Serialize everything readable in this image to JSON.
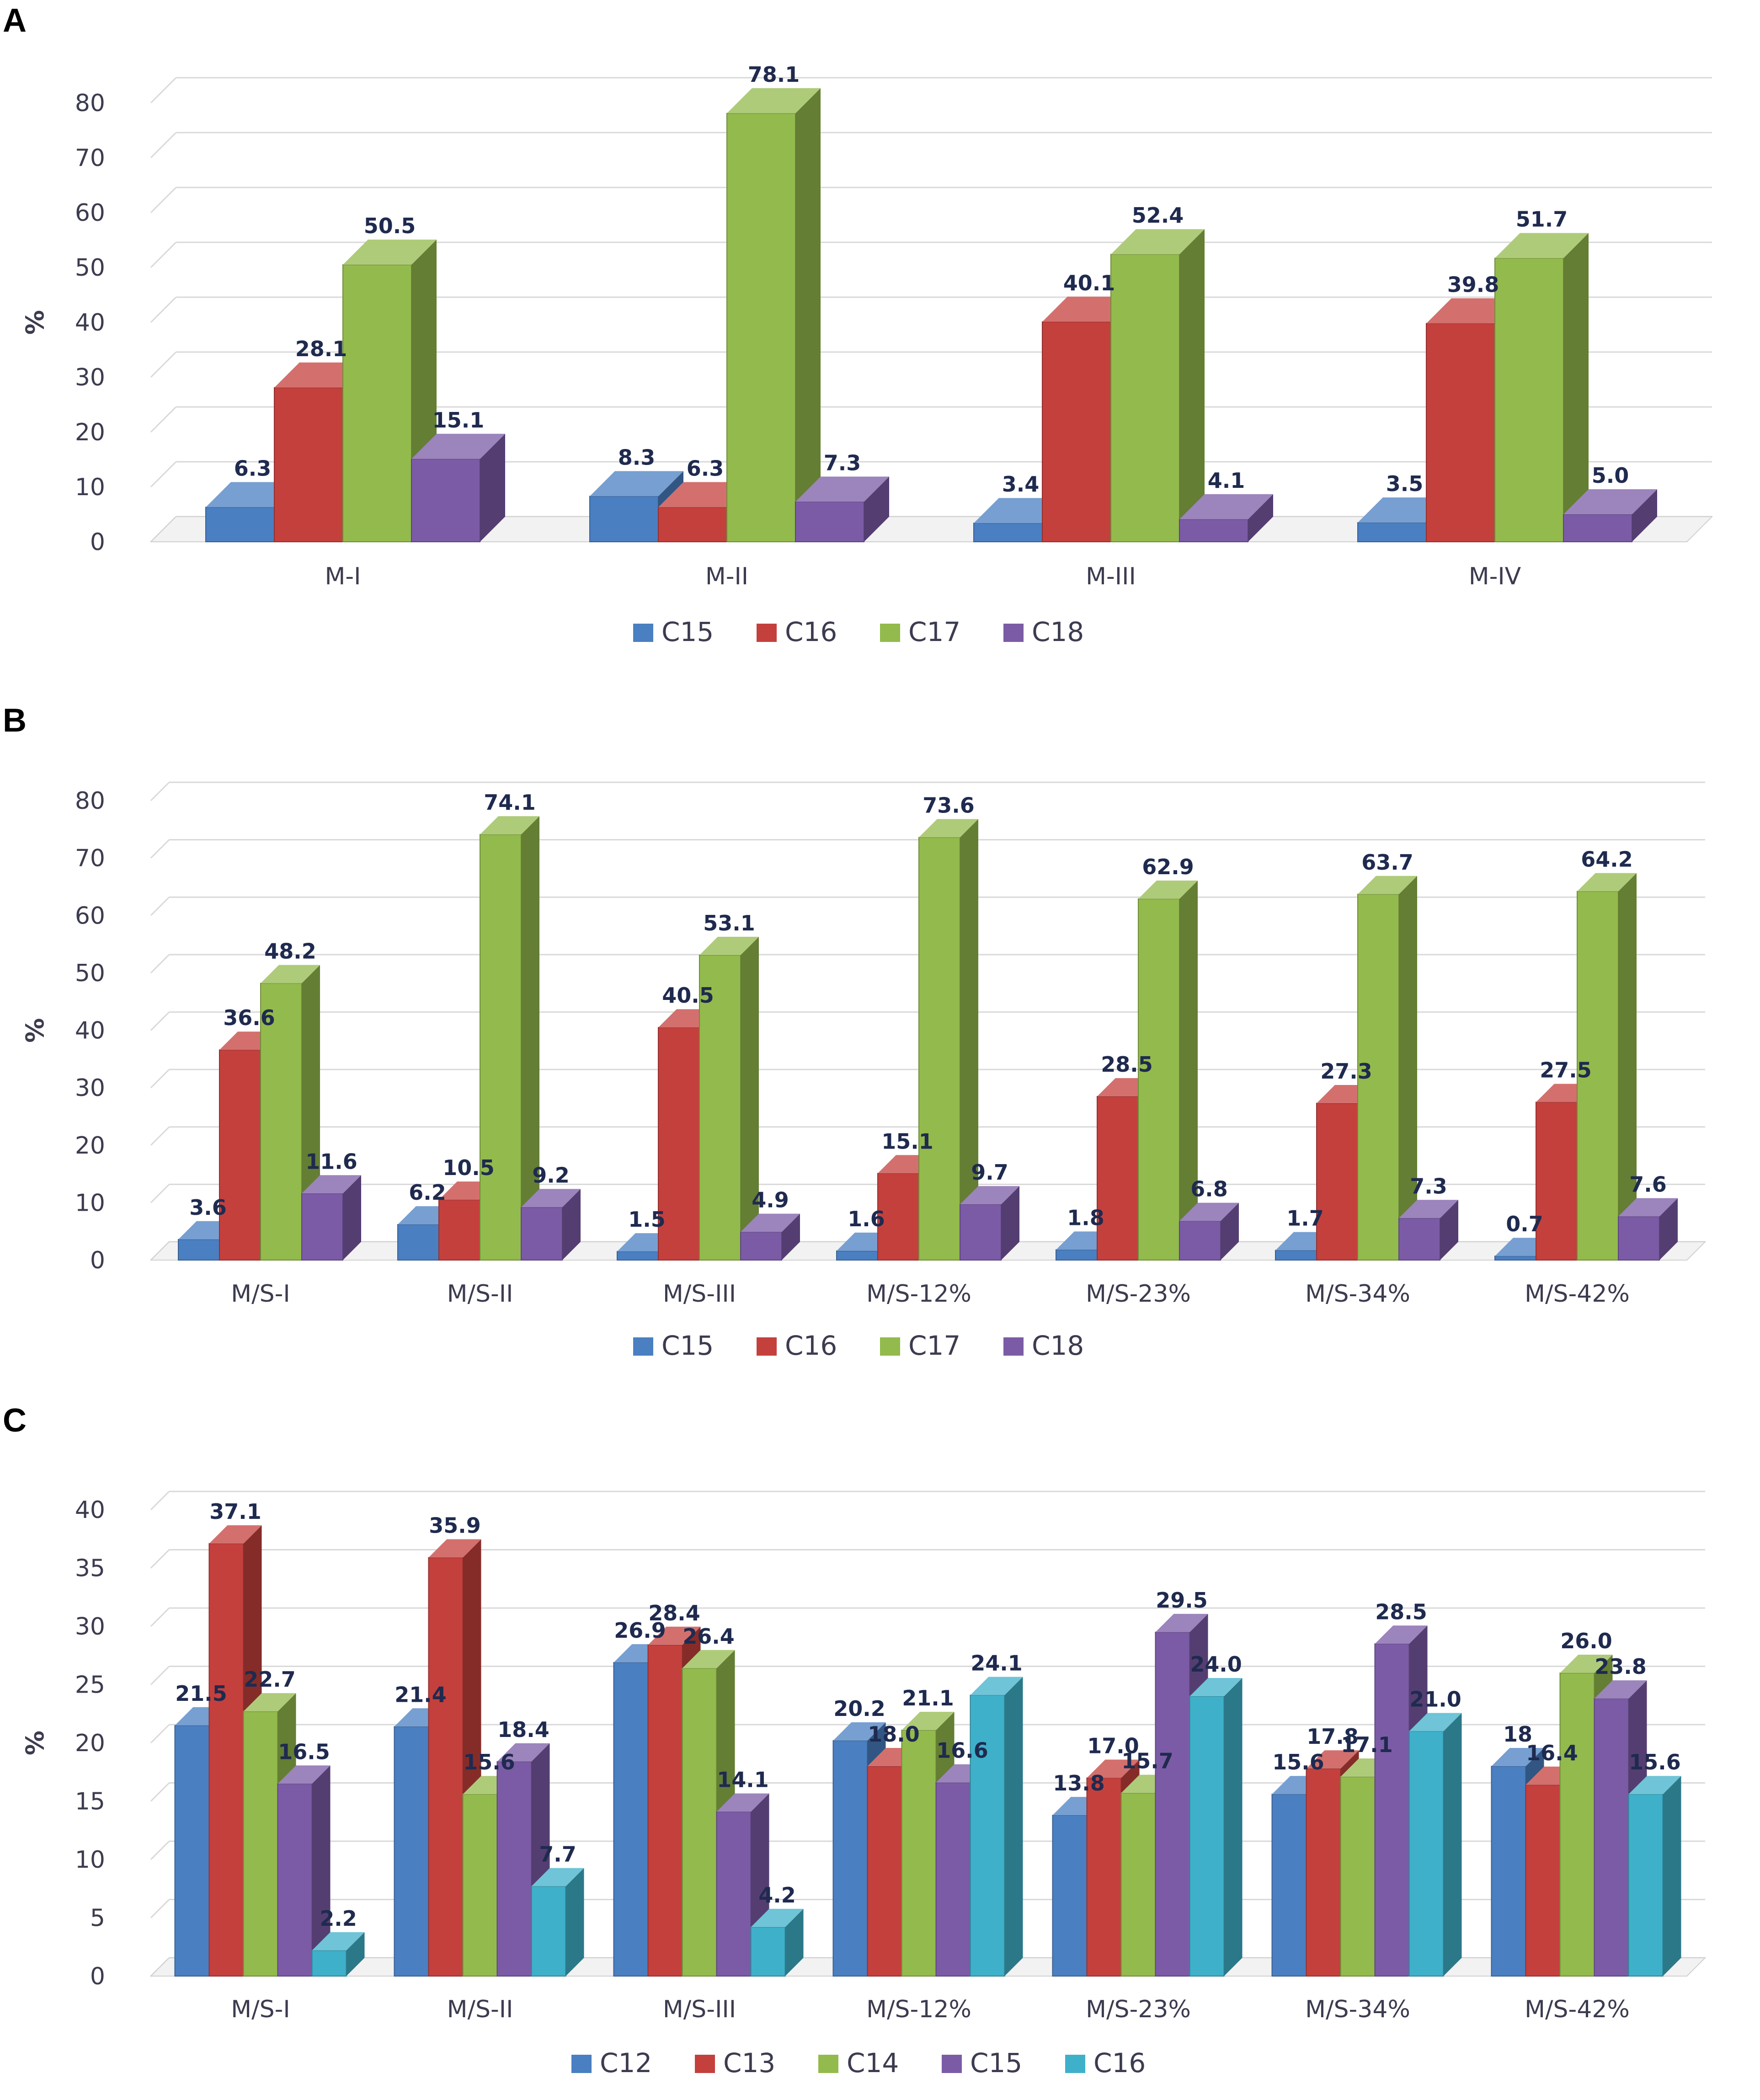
{
  "chart_data": [
    {
      "panel_label": "A",
      "type": "bar",
      "ylabel": "%",
      "ylim": [
        0,
        80
      ],
      "yticks": [
        "0",
        "10",
        "20",
        "30",
        "40",
        "50",
        "60",
        "70",
        "80"
      ],
      "categories": [
        "M-I",
        "M-II",
        "M-III",
        "M-IV"
      ],
      "series": [
        {
          "name": "C15",
          "color": "#4a7fc1",
          "values": [
            6.3,
            8.3,
            3.4,
            3.5
          ],
          "labels": [
            "6.3",
            "8.3",
            "3.4",
            "3.5"
          ]
        },
        {
          "name": "C16",
          "color": "#c4403d",
          "values": [
            28.1,
            6.3,
            40.1,
            39.8
          ],
          "labels": [
            "28.1",
            "6.3",
            "40.1",
            "39.8"
          ]
        },
        {
          "name": "C17",
          "color": "#93ba4c",
          "values": [
            50.5,
            78.1,
            52.4,
            51.7
          ],
          "labels": [
            "50.5",
            "78.1",
            "52.4",
            "51.7"
          ]
        },
        {
          "name": "C18",
          "color": "#7b5ba6",
          "values": [
            15.1,
            7.3,
            4.1,
            5.0
          ],
          "labels": [
            "15.1",
            "7.3",
            "4.1",
            "5.0"
          ]
        }
      ],
      "legend_position": "bottom"
    },
    {
      "panel_label": "B",
      "type": "bar",
      "ylabel": "%",
      "ylim": [
        0,
        80
      ],
      "yticks": [
        "0",
        "10",
        "20",
        "30",
        "40",
        "50",
        "60",
        "70",
        "80"
      ],
      "categories": [
        "M/S-I",
        "M/S-II",
        "M/S-III",
        "M/S-12%",
        "M/S-23%",
        "M/S-34%",
        "M/S-42%"
      ],
      "series": [
        {
          "name": "C15",
          "color": "#4a7fc1",
          "values": [
            3.6,
            6.2,
            1.5,
            1.6,
            1.8,
            1.7,
            0.7
          ],
          "labels": [
            "3.6",
            "6.2",
            "1.5",
            "1.6",
            "1.8",
            "1.7",
            "0.7"
          ]
        },
        {
          "name": "C16",
          "color": "#c4403d",
          "values": [
            36.6,
            10.5,
            40.5,
            15.1,
            28.5,
            27.3,
            27.5
          ],
          "labels": [
            "36.6",
            "10.5",
            "40.5",
            "15.1",
            "28.5",
            "27.3",
            "27.5"
          ]
        },
        {
          "name": "C17",
          "color": "#93ba4c",
          "values": [
            48.2,
            74.1,
            53.1,
            73.6,
            62.9,
            63.7,
            64.2
          ],
          "labels": [
            "48.2",
            "74.1",
            "53.1",
            "73.6",
            "62.9",
            "63.7",
            "64.2"
          ]
        },
        {
          "name": "C18",
          "color": "#7b5ba6",
          "values": [
            11.6,
            9.2,
            4.9,
            9.7,
            6.8,
            7.3,
            7.6
          ],
          "labels": [
            "11.6",
            "9.2",
            "4.9",
            "9.7",
            "6.8",
            "7.3",
            "7.6"
          ]
        }
      ],
      "legend_position": "bottom"
    },
    {
      "panel_label": "C",
      "type": "bar",
      "ylabel": "%",
      "ylim": [
        0,
        40
      ],
      "yticks": [
        "0",
        "5",
        "10",
        "15",
        "20",
        "25",
        "30",
        "35",
        "40"
      ],
      "categories": [
        "M/S-I",
        "M/S-II",
        "M/S-III",
        "M/S-12%",
        "M/S-23%",
        "M/S-34%",
        "M/S-42%"
      ],
      "series": [
        {
          "name": "C12",
          "color": "#4a7fc1",
          "values": [
            21.5,
            21.4,
            26.9,
            20.2,
            13.8,
            15.6,
            18
          ],
          "labels": [
            "21.5",
            "21.4",
            "26.9",
            "20.2",
            "13.8",
            "15.6",
            "18"
          ]
        },
        {
          "name": "C13",
          "color": "#c4403d",
          "values": [
            37.1,
            35.9,
            28.4,
            18.0,
            17.0,
            17.8,
            16.4
          ],
          "labels": [
            "37.1",
            "35.9",
            "28.4",
            "18.0",
            "17.0",
            "17.8",
            "16.4"
          ]
        },
        {
          "name": "C14",
          "color": "#93ba4c",
          "values": [
            22.7,
            15.6,
            26.4,
            21.1,
            15.7,
            17.1,
            26.0
          ],
          "labels": [
            "22.7",
            "15.6",
            "26.4",
            "21.1",
            "15.7",
            "17.1",
            "26.0"
          ]
        },
        {
          "name": "C15",
          "color": "#7b5ba6",
          "values": [
            16.5,
            18.4,
            14.1,
            16.6,
            29.5,
            28.5,
            23.8
          ],
          "labels": [
            "16.5",
            "18.4",
            "14.1",
            "16.6",
            "29.5",
            "28.5",
            "23.8"
          ]
        },
        {
          "name": "C16",
          "color": "#3fb0c9",
          "values": [
            2.2,
            7.7,
            4.2,
            24.1,
            24.0,
            21.0,
            15.6
          ],
          "labels": [
            "2.2",
            "7.7",
            "4.2",
            "24.1",
            "24.0",
            "21.0",
            "15.6"
          ]
        }
      ],
      "legend_position": "bottom"
    }
  ]
}
